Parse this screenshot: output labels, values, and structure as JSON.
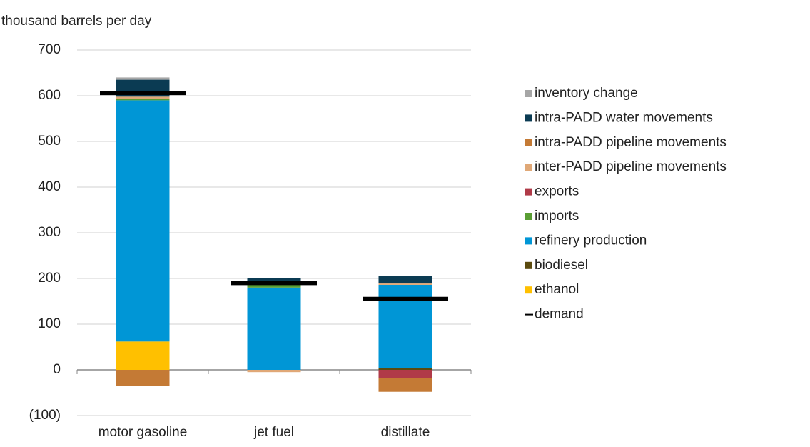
{
  "chart_data": {
    "type": "stacked-bar",
    "y_label": "thousand barrels per day",
    "categories": [
      "motor gasoline",
      "jet fuel",
      "distillate"
    ],
    "ylim": [
      -100,
      700
    ],
    "yticks": [
      {
        "value": -100,
        "label": "(100)"
      },
      0,
      100,
      200,
      300,
      400,
      500,
      600,
      700
    ],
    "grid": true,
    "series": [
      {
        "name": "inventory change",
        "color": "#a6a6a6",
        "values": [
          5,
          0,
          1
        ]
      },
      {
        "name": "intra-PADD water movements",
        "color": "#0b3b53",
        "values": [
          37,
          12,
          16
        ]
      },
      {
        "name": "intra-PADD pipeline movements",
        "color": "#c47a35",
        "values": [
          -35,
          0,
          -30
        ]
      },
      {
        "name": "inter-PADD pipeline movements",
        "color": "#e0a877",
        "values": [
          5,
          -5,
          3
        ]
      },
      {
        "name": "exports",
        "color": "#b03a48",
        "values": [
          0,
          0,
          -18
        ]
      },
      {
        "name": "imports",
        "color": "#5a9e34",
        "values": [
          3,
          8,
          0
        ]
      },
      {
        "name": "refinery production",
        "color": "#0096d6",
        "values": [
          528,
          180,
          182
        ]
      },
      {
        "name": "biodiesel",
        "color": "#5b4a0e",
        "values": [
          0,
          0,
          4
        ]
      },
      {
        "name": "ethanol",
        "color": "#ffc000",
        "values": [
          62,
          0,
          0
        ]
      }
    ],
    "demand": {
      "name": "demand",
      "color": "#000000",
      "values": [
        606,
        190,
        155
      ]
    }
  }
}
